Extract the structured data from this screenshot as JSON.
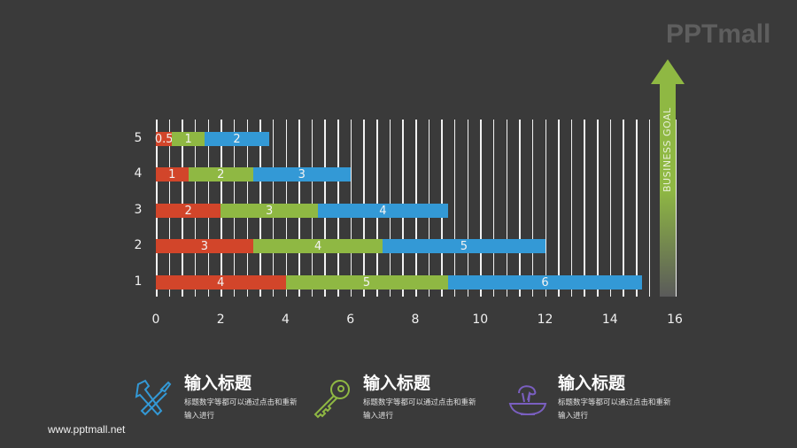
{
  "logo": {
    "text": "PPTmall"
  },
  "chart_data": {
    "type": "bar",
    "orientation": "horizontal",
    "stacked": true,
    "categories": [
      "1",
      "2",
      "3",
      "4",
      "5"
    ],
    "series": [
      {
        "name": "red",
        "color": "#d2452a",
        "values": [
          4,
          3,
          2,
          1,
          0.5
        ]
      },
      {
        "name": "green",
        "color": "#8fb843",
        "values": [
          5,
          4,
          3,
          2,
          1
        ]
      },
      {
        "name": "blue",
        "color": "#3399d6",
        "values": [
          6,
          5,
          4,
          3,
          2
        ]
      }
    ],
    "x_ticks": [
      "0",
      "2",
      "4",
      "6",
      "8",
      "10",
      "12",
      "14",
      "16"
    ],
    "xlim": [
      0,
      16
    ],
    "grid": true,
    "annotation": "BUSINESS GOAL",
    "title": "",
    "xlabel": "",
    "ylabel": ""
  },
  "goal": {
    "label": "BUSINESS GOAL",
    "color": "#8fb843"
  },
  "features": [
    {
      "icon": "tools-icon",
      "color": "#3399d6",
      "title": "输入标题",
      "desc": "标题数字等都可以通过点击和重新输入进行"
    },
    {
      "icon": "key-icon",
      "color": "#8fb843",
      "title": "输入标题",
      "desc": "标题数字等都可以通过点击和重新输入进行"
    },
    {
      "icon": "juicer-icon",
      "color": "#7a5fc0",
      "title": "输入标题",
      "desc": "标题数字等都可以通过点击和重新输入进行"
    }
  ],
  "footer": {
    "url": "www.pptmall.net"
  }
}
